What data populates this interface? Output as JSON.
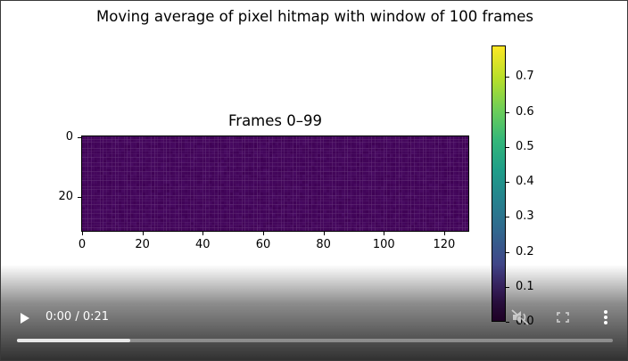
{
  "figure": {
    "title": "Moving average of pixel hitmap with window of 100 frames",
    "subplot_title": "Frames 0–99"
  },
  "chart_data": {
    "type": "heatmap",
    "title": "Frames 0–99",
    "x_ticks": [
      "0",
      "20",
      "40",
      "60",
      "80",
      "100",
      "120"
    ],
    "y_ticks": [
      "0",
      "20"
    ],
    "xlim": [
      0,
      128
    ],
    "ylim": [
      32,
      0
    ],
    "grid": false,
    "colormap": "viridis",
    "colorbar": {
      "ticks": [
        "0.0",
        "0.1",
        "0.2",
        "0.3",
        "0.4",
        "0.5",
        "0.6",
        "0.7"
      ],
      "range": [
        0,
        0.79
      ]
    },
    "approx_value": 0.01
  },
  "player": {
    "current_time": "0:00",
    "separator": " / ",
    "duration": "0:21",
    "progress": 0.19,
    "icons": {
      "play": "play-icon",
      "mute": "volume-icon",
      "fullscreen": "fullscreen-icon",
      "more": "more-vertical-icon"
    }
  }
}
